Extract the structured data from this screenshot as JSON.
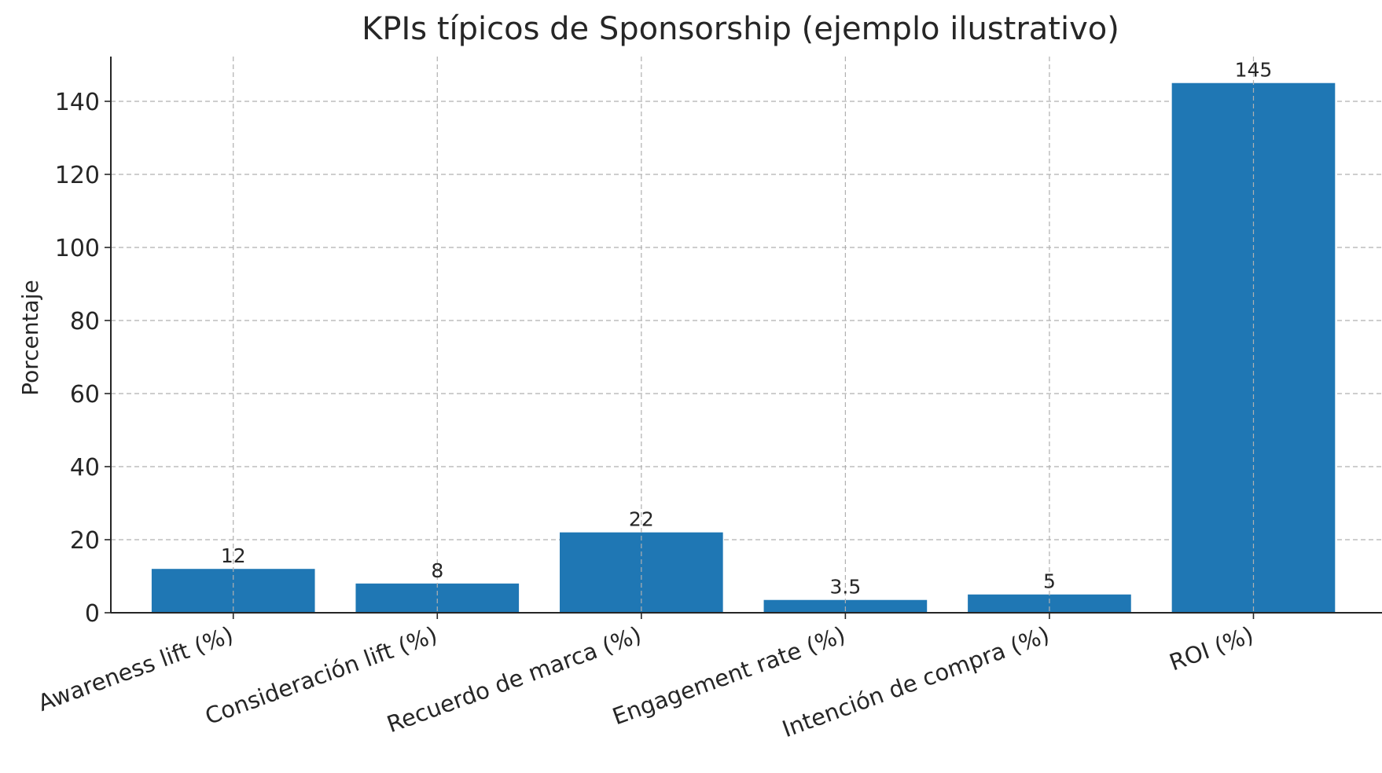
{
  "chart_data": {
    "type": "bar",
    "title": "KPIs típicos de Sponsorship (ejemplo ilustrativo)",
    "xlabel": "",
    "ylabel": "Porcentaje",
    "categories": [
      "Awareness lift (%)",
      "Consideración lift (%)",
      "Recuerdo de marca (%)",
      "Engagement rate (%)",
      "Intención de compra (%)",
      "ROI (%)"
    ],
    "values": [
      12,
      8,
      22,
      3.5,
      5,
      145
    ],
    "value_labels": [
      "12",
      "8",
      "22",
      "3.5",
      "5",
      "145"
    ],
    "ylim": [
      0,
      152.25
    ],
    "yticks": [
      0,
      20,
      40,
      60,
      80,
      100,
      120,
      140
    ],
    "ytick_labels": [
      "0",
      "20",
      "40",
      "60",
      "80",
      "100",
      "120",
      "140"
    ],
    "grid": true,
    "bar_color": "#1f77b4",
    "legend": "none"
  }
}
